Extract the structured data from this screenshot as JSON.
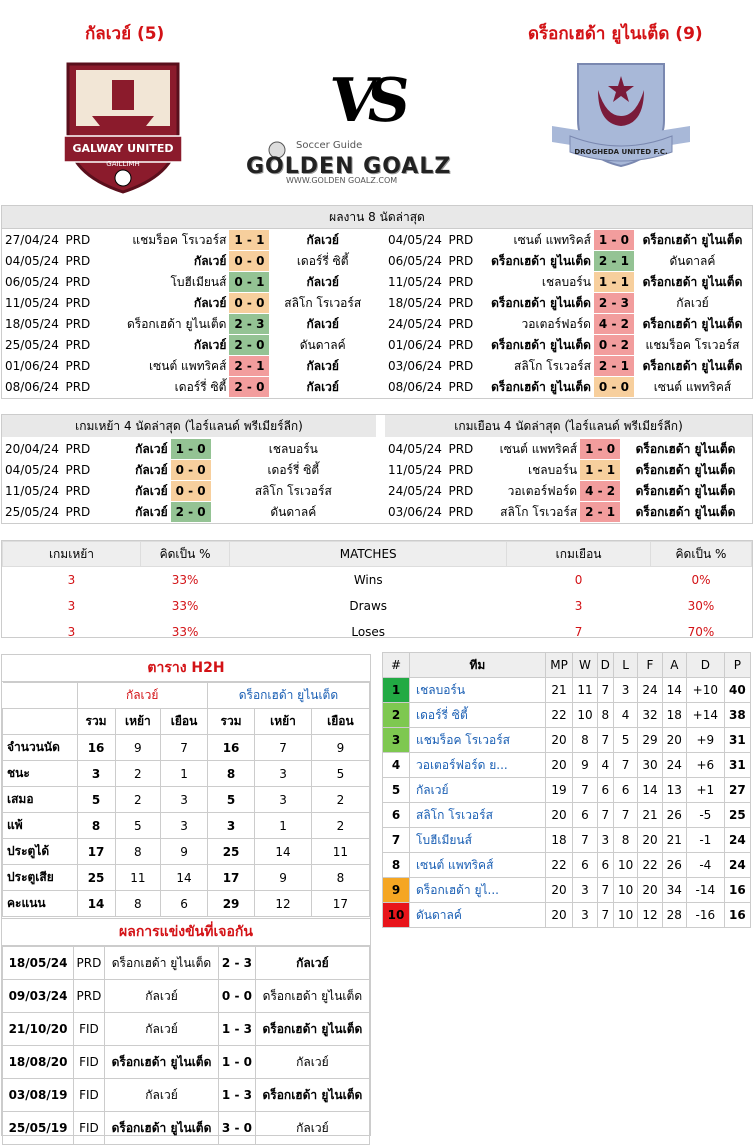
{
  "header": {
    "home_title": "กัลเวย์ (5)",
    "away_title": "ดร็อกเฮด้า ยูไนเต็ด (9)",
    "vs": "VS",
    "home_logo_text_top": "GALWAY UNITED",
    "home_logo_text_bottom": "GAILLIMH",
    "away_logo_text": "DROGHEDA UNITED F.C.",
    "brand_small": "Soccer Guide",
    "brand_main": "GOLDEN GOALZ",
    "brand_url": "WWW.GOLDEN GOALZ.COM"
  },
  "last8": {
    "title": "ผลงาน 8 นัดล่าสุด",
    "home": [
      {
        "date": "27/04/24",
        "lg": "PRD",
        "h": "แชมร็อค โรเวอร์ส",
        "s": "1 - 1",
        "a": "กัลเวย์",
        "r": "d",
        "hb": false,
        "ab": true
      },
      {
        "date": "04/05/24",
        "lg": "PRD",
        "h": "กัลเวย์",
        "s": "0 - 0",
        "a": "เดอร์รี่ ซิตี้",
        "r": "d",
        "hb": true,
        "ab": false
      },
      {
        "date": "06/05/24",
        "lg": "PRD",
        "h": "โบฮีเมียนส์",
        "s": "0 - 1",
        "a": "กัลเวย์",
        "r": "w",
        "hb": false,
        "ab": true
      },
      {
        "date": "11/05/24",
        "lg": "PRD",
        "h": "กัลเวย์",
        "s": "0 - 0",
        "a": "สลิโก โรเวอร์ส",
        "r": "d",
        "hb": true,
        "ab": false
      },
      {
        "date": "18/05/24",
        "lg": "PRD",
        "h": "ดร็อกเฮด้า ยูไนเต็ด",
        "s": "2 - 3",
        "a": "กัลเวย์",
        "r": "w",
        "hb": false,
        "ab": true
      },
      {
        "date": "25/05/24",
        "lg": "PRD",
        "h": "กัลเวย์",
        "s": "2 - 0",
        "a": "ดันดาลค์",
        "r": "w",
        "hb": true,
        "ab": false
      },
      {
        "date": "01/06/24",
        "lg": "PRD",
        "h": "เซนต์ แพทริคส์",
        "s": "2 - 1",
        "a": "กัลเวย์",
        "r": "l",
        "hb": false,
        "ab": true
      },
      {
        "date": "08/06/24",
        "lg": "PRD",
        "h": "เดอร์รี่ ซิตี้",
        "s": "2 - 0",
        "a": "กัลเวย์",
        "r": "l",
        "hb": false,
        "ab": true
      }
    ],
    "away": [
      {
        "date": "04/05/24",
        "lg": "PRD",
        "h": "เซนต์ แพทริคส์",
        "s": "1 - 0",
        "a": "ดร็อกเฮด้า ยูไนเต็ด",
        "r": "l",
        "hb": false,
        "ab": true
      },
      {
        "date": "06/05/24",
        "lg": "PRD",
        "h": "ดร็อกเฮด้า ยูไนเต็ด",
        "s": "2 - 1",
        "a": "ดันดาลค์",
        "r": "w",
        "hb": true,
        "ab": false
      },
      {
        "date": "11/05/24",
        "lg": "PRD",
        "h": "เชลบอร์น",
        "s": "1 - 1",
        "a": "ดร็อกเฮด้า ยูไนเต็ด",
        "r": "d",
        "hb": false,
        "ab": true
      },
      {
        "date": "18/05/24",
        "lg": "PRD",
        "h": "ดร็อกเฮด้า ยูไนเต็ด",
        "s": "2 - 3",
        "a": "กัลเวย์",
        "r": "l",
        "hb": true,
        "ab": false
      },
      {
        "date": "24/05/24",
        "lg": "PRD",
        "h": "วอเตอร์ฟอร์ด",
        "s": "4 - 2",
        "a": "ดร็อกเฮด้า ยูไนเต็ด",
        "r": "l",
        "hb": false,
        "ab": true
      },
      {
        "date": "01/06/24",
        "lg": "PRD",
        "h": "ดร็อกเฮด้า ยูไนเต็ด",
        "s": "0 - 2",
        "a": "แชมร็อค โรเวอร์ส",
        "r": "l",
        "hb": true,
        "ab": false
      },
      {
        "date": "03/06/24",
        "lg": "PRD",
        "h": "สลิโก โรเวอร์ส",
        "s": "2 - 1",
        "a": "ดร็อกเฮด้า ยูไนเต็ด",
        "r": "l",
        "hb": false,
        "ab": true
      },
      {
        "date": "08/06/24",
        "lg": "PRD",
        "h": "ดร็อกเฮด้า ยูไนเต็ด",
        "s": "0 - 0",
        "a": "เซนต์ แพทริคส์",
        "r": "d",
        "hb": true,
        "ab": false
      }
    ]
  },
  "last4": {
    "home_title": "เกมเหย้า 4 นัดล่าสุด (ไอร์แลนด์ พรีเมียร์ลีก)",
    "away_title": "เกมเยือน 4 นัดล่าสุด (ไอร์แลนด์ พรีเมียร์ลีก)",
    "home": [
      {
        "date": "20/04/24",
        "lg": "PRD",
        "h": "กัลเวย์",
        "s": "1 - 0",
        "a": "เชลบอร์น",
        "r": "w",
        "hb": true,
        "ab": false
      },
      {
        "date": "04/05/24",
        "lg": "PRD",
        "h": "กัลเวย์",
        "s": "0 - 0",
        "a": "เดอร์รี่ ซิตี้",
        "r": "d",
        "hb": true,
        "ab": false
      },
      {
        "date": "11/05/24",
        "lg": "PRD",
        "h": "กัลเวย์",
        "s": "0 - 0",
        "a": "สลิโก โรเวอร์ส",
        "r": "d",
        "hb": true,
        "ab": false
      },
      {
        "date": "25/05/24",
        "lg": "PRD",
        "h": "กัลเวย์",
        "s": "2 - 0",
        "a": "ดันดาลค์",
        "r": "w",
        "hb": true,
        "ab": false
      }
    ],
    "away": [
      {
        "date": "04/05/24",
        "lg": "PRD",
        "h": "เซนต์ แพทริคส์",
        "s": "1 - 0",
        "a": "ดร็อกเฮด้า ยูไนเต็ด",
        "r": "l",
        "hb": false,
        "ab": true
      },
      {
        "date": "11/05/24",
        "lg": "PRD",
        "h": "เชลบอร์น",
        "s": "1 - 1",
        "a": "ดร็อกเฮด้า ยูไนเต็ด",
        "r": "d",
        "hb": false,
        "ab": true
      },
      {
        "date": "24/05/24",
        "lg": "PRD",
        "h": "วอเตอร์ฟอร์ด",
        "s": "4 - 2",
        "a": "ดร็อกเฮด้า ยูไนเต็ด",
        "r": "l",
        "hb": false,
        "ab": true
      },
      {
        "date": "03/06/24",
        "lg": "PRD",
        "h": "สลิโก โรเวอร์ส",
        "s": "2 - 1",
        "a": "ดร็อกเฮด้า ยูไนเต็ด",
        "r": "l",
        "hb": false,
        "ab": true
      }
    ]
  },
  "summary": {
    "headers": [
      "เกมเหย้า",
      "คิดเป็น %",
      "MATCHES",
      "เกมเยือน",
      "คิดเป็น %"
    ],
    "rows": [
      {
        "hv": "3",
        "hp": "33%",
        "label": "Wins",
        "av": "0",
        "ap": "0%"
      },
      {
        "hv": "3",
        "hp": "33%",
        "label": "Draws",
        "av": "3",
        "ap": "30%"
      },
      {
        "hv": "3",
        "hp": "33%",
        "label": "Loses",
        "av": "7",
        "ap": "70%"
      }
    ]
  },
  "h2h": {
    "title": "ตาราง H2H",
    "home_team": "กัลเวย์",
    "away_team": "ดร็อกเฮด้า ยูไนเต็ด",
    "cols": [
      "รวม",
      "เหย้า",
      "เยือน",
      "รวม",
      "เหย้า",
      "เยือน"
    ],
    "rows": [
      {
        "label": "จำนวนนัด",
        "v": [
          "16",
          "9",
          "7",
          "16",
          "7",
          "9"
        ]
      },
      {
        "label": "ชนะ",
        "v": [
          "3",
          "2",
          "1",
          "8",
          "3",
          "5"
        ]
      },
      {
        "label": "เสมอ",
        "v": [
          "5",
          "2",
          "3",
          "5",
          "3",
          "2"
        ]
      },
      {
        "label": "แพ้",
        "v": [
          "8",
          "5",
          "3",
          "3",
          "1",
          "2"
        ]
      },
      {
        "label": "ประตูได้",
        "v": [
          "17",
          "8",
          "9",
          "25",
          "14",
          "11"
        ]
      },
      {
        "label": "ประตูเสีย",
        "v": [
          "25",
          "11",
          "14",
          "17",
          "9",
          "8"
        ]
      },
      {
        "label": "คะแนน",
        "v": [
          "14",
          "8",
          "6",
          "29",
          "12",
          "17"
        ]
      }
    ]
  },
  "meetings": {
    "title": "ผลการแข่งขันที่เจอกัน",
    "rows": [
      {
        "date": "18/05/24",
        "lg": "PRD",
        "h": "ดร็อกเฮด้า ยูไนเต็ด",
        "s": "2 - 3",
        "a": "กัลเวย์",
        "hb": false,
        "ab": true
      },
      {
        "date": "09/03/24",
        "lg": "PRD",
        "h": "กัลเวย์",
        "s": "0 - 0",
        "a": "ดร็อกเฮด้า ยูไนเต็ด",
        "hb": false,
        "ab": false
      },
      {
        "date": "21/10/20",
        "lg": "FID",
        "h": "กัลเวย์",
        "s": "1 - 3",
        "a": "ดร็อกเฮด้า ยูไนเต็ด",
        "hb": false,
        "ab": true
      },
      {
        "date": "18/08/20",
        "lg": "FID",
        "h": "ดร็อกเฮด้า ยูไนเต็ด",
        "s": "1 - 0",
        "a": "กัลเวย์",
        "hb": true,
        "ab": false
      },
      {
        "date": "03/08/19",
        "lg": "FID",
        "h": "กัลเวย์",
        "s": "1 - 3",
        "a": "ดร็อกเฮด้า ยูไนเต็ด",
        "hb": false,
        "ab": true
      },
      {
        "date": "25/05/19",
        "lg": "FID",
        "h": "ดร็อกเฮด้า ยูไนเต็ด",
        "s": "3 - 0",
        "a": "กัลเวย์",
        "hb": true,
        "ab": false
      }
    ]
  },
  "standings": {
    "headers": [
      "#",
      "ทีม",
      "MP",
      "W",
      "D",
      "L",
      "F",
      "A",
      "D",
      "P"
    ],
    "rows": [
      {
        "pos": "1",
        "team": "เชลบอร์น",
        "mp": "21",
        "w": "11",
        "d": "7",
        "l": "3",
        "f": "24",
        "a": "14",
        "gd": "+10",
        "p": "40",
        "c": "#22aa44"
      },
      {
        "pos": "2",
        "team": "เดอร์รี่ ซิตี้",
        "mp": "22",
        "w": "10",
        "d": "8",
        "l": "4",
        "f": "32",
        "a": "18",
        "gd": "+14",
        "p": "38",
        "c": "#7ec850"
      },
      {
        "pos": "3",
        "team": "แชมร็อค โรเวอร์ส",
        "mp": "20",
        "w": "8",
        "d": "7",
        "l": "5",
        "f": "29",
        "a": "20",
        "gd": "+9",
        "p": "31",
        "c": "#7ec850"
      },
      {
        "pos": "4",
        "team": "วอเตอร์ฟอร์ด ย...",
        "mp": "20",
        "w": "9",
        "d": "4",
        "l": "7",
        "f": "30",
        "a": "24",
        "gd": "+6",
        "p": "31",
        "c": ""
      },
      {
        "pos": "5",
        "team": "กัลเวย์",
        "mp": "19",
        "w": "7",
        "d": "6",
        "l": "6",
        "f": "14",
        "a": "13",
        "gd": "+1",
        "p": "27",
        "c": ""
      },
      {
        "pos": "6",
        "team": "สลิโก โรเวอร์ส",
        "mp": "20",
        "w": "6",
        "d": "7",
        "l": "7",
        "f": "21",
        "a": "26",
        "gd": "-5",
        "p": "25",
        "c": ""
      },
      {
        "pos": "7",
        "team": "โบฮีเมียนส์",
        "mp": "18",
        "w": "7",
        "d": "3",
        "l": "8",
        "f": "20",
        "a": "21",
        "gd": "-1",
        "p": "24",
        "c": ""
      },
      {
        "pos": "8",
        "team": "เซนต์ แพทริคส์",
        "mp": "22",
        "w": "6",
        "d": "6",
        "l": "10",
        "f": "22",
        "a": "26",
        "gd": "-4",
        "p": "24",
        "c": ""
      },
      {
        "pos": "9",
        "team": "ดร็อกเฮด้า ยูไ...",
        "mp": "20",
        "w": "3",
        "d": "7",
        "l": "10",
        "f": "20",
        "a": "34",
        "gd": "-14",
        "p": "16",
        "c": "#f5a623"
      },
      {
        "pos": "10",
        "team": "ดันดาลค์",
        "mp": "20",
        "w": "3",
        "d": "7",
        "l": "10",
        "f": "12",
        "a": "28",
        "gd": "-16",
        "p": "16",
        "c": "#e8151b"
      }
    ]
  }
}
